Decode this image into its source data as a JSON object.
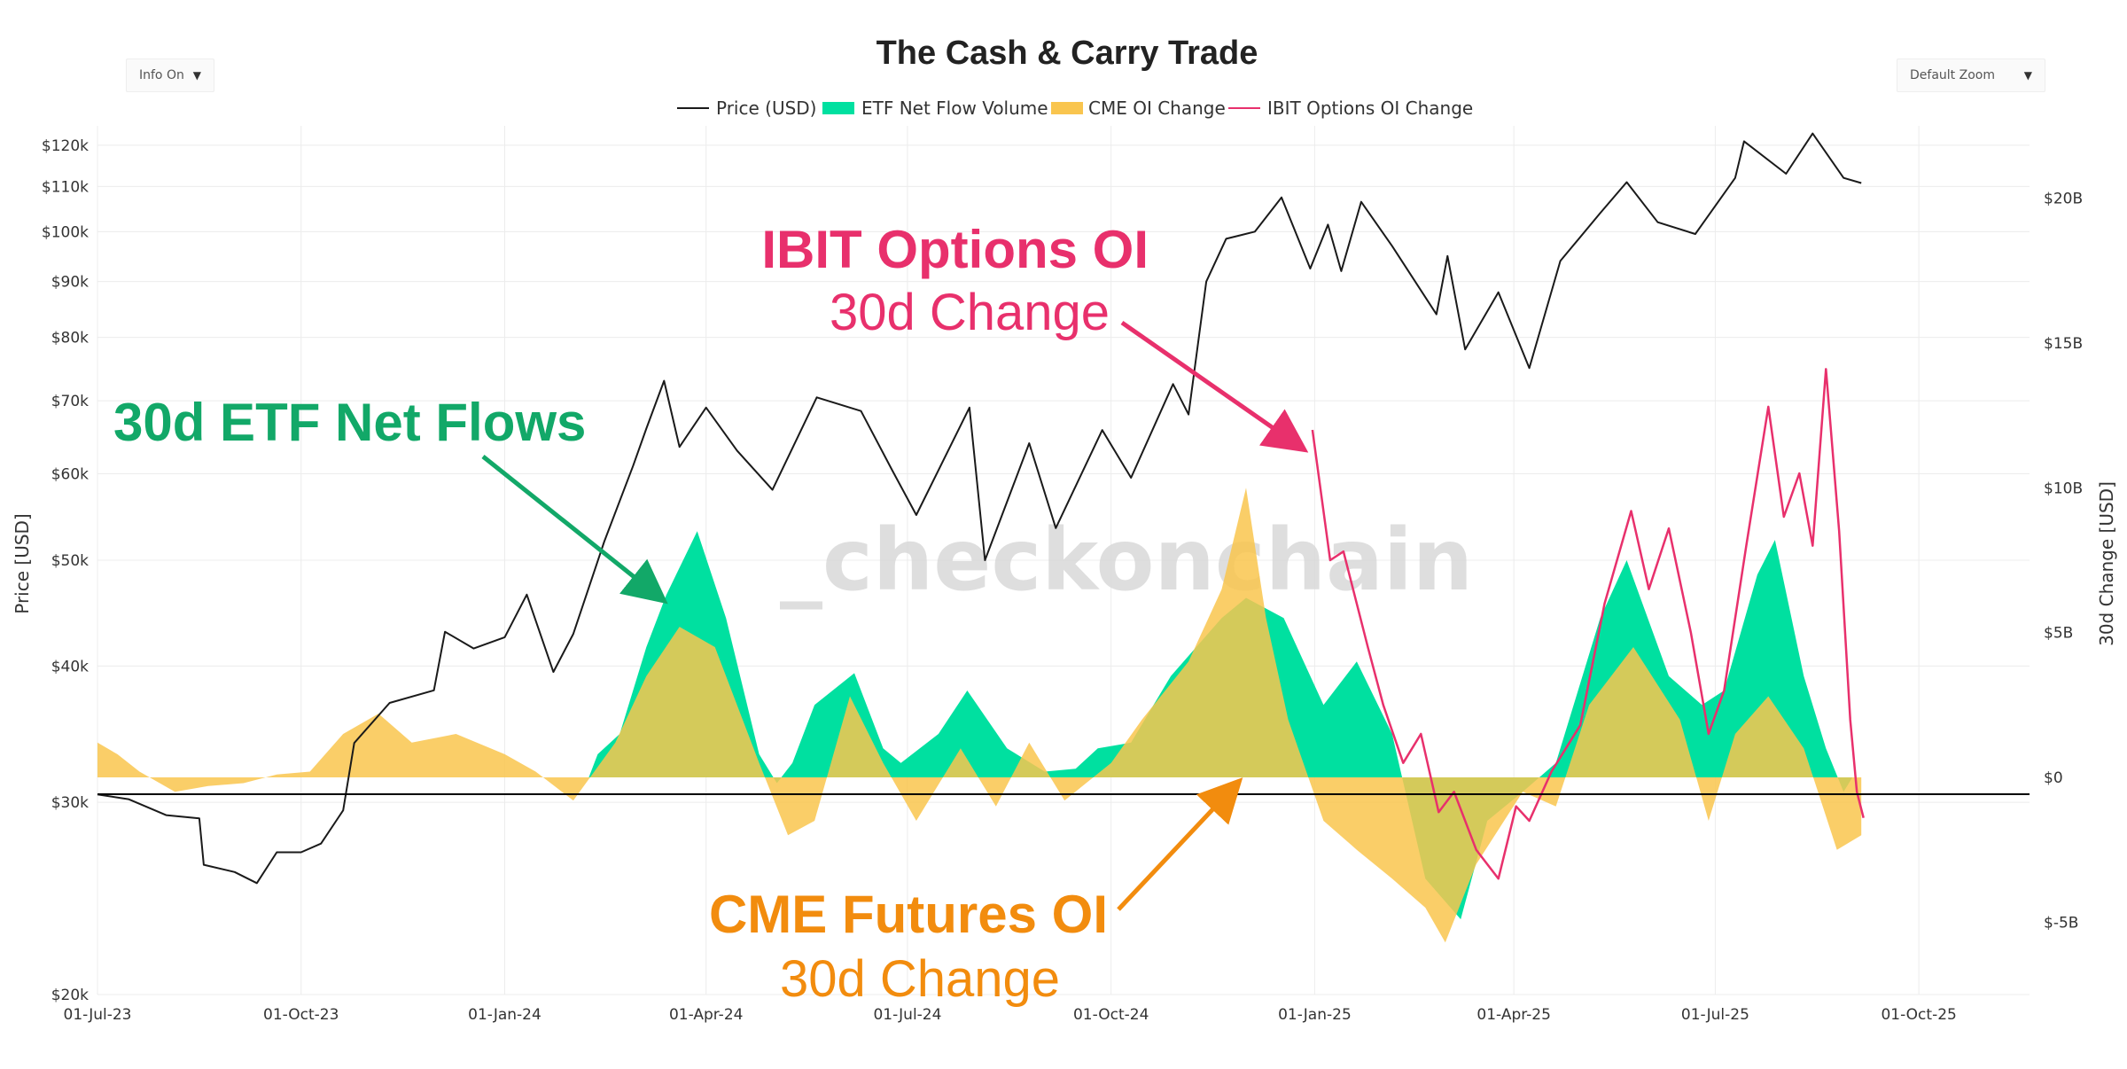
{
  "controls": {
    "info_label": "Info On",
    "zoom_label": "Default Zoom"
  },
  "colors": {
    "price": "#1a1a1a",
    "etf": "#00e0a0",
    "cme": "#f9c54e",
    "ibit": "#e8306c",
    "etf_annot": "#12a868",
    "cme_annot": "#f28c0e",
    "watermark": "#d9d9d9",
    "watermark_accent": "#fde3b6"
  },
  "watermark": "_checkonchain",
  "annotations": {
    "etf": "30d ETF Net Flows",
    "ibit_line1": "IBIT Options OI",
    "ibit_line2": "30d Change",
    "cme_line1": "CME Futures OI",
    "cme_line2": "30d Change"
  },
  "chart_data": {
    "type": "line",
    "title": "The Cash & Carry Trade",
    "ylabel": "Price [USD]",
    "y2label": "30d Change [USD]",
    "ylim": [
      20000,
      125000
    ],
    "y2lim": [
      -7500000000,
      22500000000
    ],
    "xlim": [
      "2023-07-01",
      "2025-11-20"
    ],
    "x_ticks": [
      {
        "date": "2023-07-01",
        "label": "01-Jul-23"
      },
      {
        "date": "2023-10-01",
        "label": "01-Oct-23"
      },
      {
        "date": "2024-01-01",
        "label": "01-Jan-24"
      },
      {
        "date": "2024-04-01",
        "label": "01-Apr-24"
      },
      {
        "date": "2024-07-01",
        "label": "01-Jul-24"
      },
      {
        "date": "2024-10-01",
        "label": "01-Oct-24"
      },
      {
        "date": "2025-01-01",
        "label": "01-Jan-25"
      },
      {
        "date": "2025-04-01",
        "label": "01-Apr-25"
      },
      {
        "date": "2025-07-01",
        "label": "01-Jul-25"
      },
      {
        "date": "2025-10-01",
        "label": "01-Oct-25"
      }
    ],
    "y_ticks": [
      {
        "value": 20000,
        "label": "$20k"
      },
      {
        "value": 30000,
        "label": "$30k"
      },
      {
        "value": 40000,
        "label": "$40k"
      },
      {
        "value": 50000,
        "label": "$50k"
      },
      {
        "value": 60000,
        "label": "$60k"
      },
      {
        "value": 70000,
        "label": "$70k"
      },
      {
        "value": 80000,
        "label": "$80k"
      },
      {
        "value": 90000,
        "label": "$90k"
      },
      {
        "value": 100000,
        "label": "$100k"
      },
      {
        "value": 110000,
        "label": "$110k"
      },
      {
        "value": 120000,
        "label": "$120k"
      }
    ],
    "y2_ticks": [
      {
        "value": -5000000000,
        "label": "$-5B"
      },
      {
        "value": 0,
        "label": "$0"
      },
      {
        "value": 5000000000,
        "label": "$5B"
      },
      {
        "value": 10000000000,
        "label": "$10B"
      },
      {
        "value": 15000000000,
        "label": "$15B"
      },
      {
        "value": 20000000000,
        "label": "$20B"
      }
    ],
    "series": [
      {
        "name": "Price (USD)",
        "axis": "left",
        "style": "line",
        "points": [
          [
            "2023-07-01",
            30500
          ],
          [
            "2023-07-15",
            30200
          ],
          [
            "2023-08-01",
            29200
          ],
          [
            "2023-08-16",
            29000
          ],
          [
            "2023-08-18",
            26300
          ],
          [
            "2023-09-01",
            25900
          ],
          [
            "2023-09-11",
            25300
          ],
          [
            "2023-09-20",
            27000
          ],
          [
            "2023-10-01",
            27000
          ],
          [
            "2023-10-10",
            27500
          ],
          [
            "2023-10-20",
            29500
          ],
          [
            "2023-10-25",
            34000
          ],
          [
            "2023-11-10",
            37000
          ],
          [
            "2023-11-30",
            38000
          ],
          [
            "2023-12-05",
            43000
          ],
          [
            "2023-12-18",
            41500
          ],
          [
            "2024-01-01",
            42500
          ],
          [
            "2024-01-11",
            46500
          ],
          [
            "2024-01-23",
            39500
          ],
          [
            "2024-02-01",
            42800
          ],
          [
            "2024-02-15",
            52000
          ],
          [
            "2024-02-28",
            61000
          ],
          [
            "2024-03-05",
            66000
          ],
          [
            "2024-03-13",
            73000
          ],
          [
            "2024-03-20",
            63500
          ],
          [
            "2024-04-01",
            69000
          ],
          [
            "2024-04-15",
            63000
          ],
          [
            "2024-05-01",
            58000
          ],
          [
            "2024-05-21",
            70500
          ],
          [
            "2024-06-10",
            68500
          ],
          [
            "2024-06-24",
            60500
          ],
          [
            "2024-07-05",
            55000
          ],
          [
            "2024-07-29",
            69000
          ],
          [
            "2024-08-05",
            50000
          ],
          [
            "2024-08-25",
            64000
          ],
          [
            "2024-09-06",
            53500
          ],
          [
            "2024-09-27",
            65800
          ],
          [
            "2024-10-10",
            59500
          ],
          [
            "2024-10-29",
            72500
          ],
          [
            "2024-11-05",
            68000
          ],
          [
            "2024-11-13",
            90000
          ],
          [
            "2024-11-22",
            98500
          ],
          [
            "2024-12-05",
            100000
          ],
          [
            "2024-12-17",
            107500
          ],
          [
            "2024-12-30",
            92500
          ],
          [
            "2025-01-07",
            101500
          ],
          [
            "2025-01-13",
            92000
          ],
          [
            "2025-01-22",
            106500
          ],
          [
            "2025-02-05",
            97000
          ],
          [
            "2025-02-25",
            84000
          ],
          [
            "2025-03-02",
            95000
          ],
          [
            "2025-03-10",
            78000
          ],
          [
            "2025-03-25",
            88000
          ],
          [
            "2025-04-08",
            75000
          ],
          [
            "2025-04-22",
            94000
          ],
          [
            "2025-05-10",
            104000
          ],
          [
            "2025-05-22",
            111000
          ],
          [
            "2025-06-05",
            102000
          ],
          [
            "2025-06-22",
            99500
          ],
          [
            "2025-07-10",
            112000
          ],
          [
            "2025-07-14",
            121000
          ],
          [
            "2025-08-02",
            113000
          ],
          [
            "2025-08-14",
            123000
          ],
          [
            "2025-08-28",
            112000
          ],
          [
            "2025-09-05",
            110800
          ]
        ]
      },
      {
        "name": "ETF Net Flow Volume",
        "axis": "right",
        "style": "area",
        "points": [
          [
            "2024-02-08",
            0
          ],
          [
            "2024-02-12",
            800000000.0
          ],
          [
            "2024-02-22",
            1500000000.0
          ],
          [
            "2024-03-05",
            4500000000.0
          ],
          [
            "2024-03-14",
            6300000000.0
          ],
          [
            "2024-03-28",
            8500000000.0
          ],
          [
            "2024-04-10",
            5500000000.0
          ],
          [
            "2024-04-25",
            800000000.0
          ],
          [
            "2024-05-03",
            -200000000.0
          ],
          [
            "2024-05-10",
            500000000.0
          ],
          [
            "2024-05-20",
            2500000000.0
          ],
          [
            "2024-06-07",
            3600000000.0
          ],
          [
            "2024-06-20",
            1000000000.0
          ],
          [
            "2024-06-28",
            500000000.0
          ],
          [
            "2024-07-15",
            1500000000.0
          ],
          [
            "2024-07-28",
            3000000000.0
          ],
          [
            "2024-08-15",
            1000000000.0
          ],
          [
            "2024-09-01",
            200000000.0
          ],
          [
            "2024-09-15",
            300000000.0
          ],
          [
            "2024-09-25",
            1000000000.0
          ],
          [
            "2024-10-10",
            1200000000.0
          ],
          [
            "2024-10-28",
            3500000000.0
          ],
          [
            "2024-11-20",
            5500000000.0
          ],
          [
            "2024-12-01",
            6200000000.0
          ],
          [
            "2024-12-18",
            5500000000.0
          ],
          [
            "2025-01-05",
            2500000000.0
          ],
          [
            "2025-01-20",
            4000000000.0
          ],
          [
            "2025-02-05",
            1500000000.0
          ],
          [
            "2025-02-20",
            -3500000000.0
          ],
          [
            "2025-03-08",
            -4900000000.0
          ],
          [
            "2025-03-20",
            -1500000000.0
          ],
          [
            "2025-04-05",
            -500000000.0
          ],
          [
            "2025-04-20",
            500000000.0
          ],
          [
            "2025-05-10",
            5500000000.0
          ],
          [
            "2025-05-22",
            7500000000.0
          ],
          [
            "2025-06-10",
            3500000000.0
          ],
          [
            "2025-06-25",
            2500000000.0
          ],
          [
            "2025-07-05",
            3000000000.0
          ],
          [
            "2025-07-20",
            7000000000.0
          ],
          [
            "2025-07-28",
            8200000000.0
          ],
          [
            "2025-08-10",
            3500000000.0
          ],
          [
            "2025-08-20",
            1000000000.0
          ],
          [
            "2025-08-28",
            -500000000.0
          ],
          [
            "2025-09-01",
            0
          ]
        ]
      },
      {
        "name": "CME OI Change",
        "axis": "right",
        "style": "area",
        "points": [
          [
            "2023-07-01",
            1200000000.0
          ],
          [
            "2023-07-10",
            800000000.0
          ],
          [
            "2023-07-20",
            200000000.0
          ],
          [
            "2023-08-05",
            -500000000.0
          ],
          [
            "2023-08-20",
            -300000000.0
          ],
          [
            "2023-09-05",
            -200000000.0
          ],
          [
            "2023-09-20",
            100000000.0
          ],
          [
            "2023-10-05",
            200000000.0
          ],
          [
            "2023-10-20",
            1500000000.0
          ],
          [
            "2023-11-05",
            2200000000.0
          ],
          [
            "2023-11-20",
            1200000000.0
          ],
          [
            "2023-12-10",
            1500000000.0
          ],
          [
            "2024-01-01",
            800000000.0
          ],
          [
            "2024-01-15",
            200000000.0
          ],
          [
            "2024-02-01",
            -800000000.0
          ],
          [
            "2024-02-20",
            1200000000.0
          ],
          [
            "2024-03-05",
            3500000000.0
          ],
          [
            "2024-03-20",
            5200000000.0
          ],
          [
            "2024-04-05",
            4500000000.0
          ],
          [
            "2024-04-25",
            500000000.0
          ],
          [
            "2024-05-08",
            -2000000000.0
          ],
          [
            "2024-05-20",
            -1500000000.0
          ],
          [
            "2024-06-05",
            2800000000.0
          ],
          [
            "2024-06-20",
            500000000.0
          ],
          [
            "2024-07-05",
            -1500000000.0
          ],
          [
            "2024-07-25",
            1000000000.0
          ],
          [
            "2024-08-10",
            -1000000000.0
          ],
          [
            "2024-08-25",
            1200000000.0
          ],
          [
            "2024-09-10",
            -800000000.0
          ],
          [
            "2024-10-01",
            500000000.0
          ],
          [
            "2024-10-15",
            2000000000.0
          ],
          [
            "2024-11-05",
            4000000000.0
          ],
          [
            "2024-11-20",
            6500000000.0
          ],
          [
            "2024-12-01",
            10000000000.0
          ],
          [
            "2024-12-10",
            5500000000.0
          ],
          [
            "2024-12-20",
            2000000000.0
          ],
          [
            "2025-01-05",
            -1500000000.0
          ],
          [
            "2025-01-20",
            -2500000000.0
          ],
          [
            "2025-02-05",
            -3500000000.0
          ],
          [
            "2025-02-20",
            -4500000000.0
          ],
          [
            "2025-03-01",
            -5700000000.0
          ],
          [
            "2025-03-15",
            -3000000000.0
          ],
          [
            "2025-04-05",
            -500000000.0
          ],
          [
            "2025-04-20",
            -1000000000.0
          ],
          [
            "2025-05-05",
            2500000000.0
          ],
          [
            "2025-05-25",
            4500000000.0
          ],
          [
            "2025-06-15",
            2000000000.0
          ],
          [
            "2025-06-28",
            -1500000000.0
          ],
          [
            "2025-07-10",
            1500000000.0
          ],
          [
            "2025-07-25",
            2800000000.0
          ],
          [
            "2025-08-10",
            1000000000.0
          ],
          [
            "2025-08-25",
            -2500000000.0
          ],
          [
            "2025-09-05",
            -2000000000.0
          ]
        ]
      },
      {
        "name": "IBIT Options OI Change",
        "axis": "right",
        "style": "line",
        "points": [
          [
            "2024-12-31",
            12000000000.0
          ],
          [
            "2025-01-08",
            7500000000.0
          ],
          [
            "2025-01-14",
            7800000000.0
          ],
          [
            "2025-01-25",
            4500000000.0
          ],
          [
            "2025-02-01",
            2500000000.0
          ],
          [
            "2025-02-10",
            500000000.0
          ],
          [
            "2025-02-18",
            1500000000.0
          ],
          [
            "2025-02-26",
            -1200000000.0
          ],
          [
            "2025-03-05",
            -500000000.0
          ],
          [
            "2025-03-15",
            -2500000000.0
          ],
          [
            "2025-03-25",
            -3500000000.0
          ],
          [
            "2025-04-02",
            -1000000000.0
          ],
          [
            "2025-04-08",
            -1500000000.0
          ],
          [
            "2025-04-18",
            200000000.0
          ],
          [
            "2025-05-01",
            1800000000.0
          ],
          [
            "2025-05-12",
            6000000000.0
          ],
          [
            "2025-05-24",
            9200000000.0
          ],
          [
            "2025-06-01",
            6500000000.0
          ],
          [
            "2025-06-10",
            8600000000.0
          ],
          [
            "2025-06-20",
            5000000000.0
          ],
          [
            "2025-06-28",
            1500000000.0
          ],
          [
            "2025-07-05",
            3000000000.0
          ],
          [
            "2025-07-15",
            8000000000.0
          ],
          [
            "2025-07-25",
            12800000000.0
          ],
          [
            "2025-08-01",
            9000000000.0
          ],
          [
            "2025-08-08",
            10500000000.0
          ],
          [
            "2025-08-14",
            8000000000.0
          ],
          [
            "2025-08-20",
            14100000000.0
          ],
          [
            "2025-08-26",
            8500000000.0
          ],
          [
            "2025-08-31",
            2000000000.0
          ],
          [
            "2025-09-03",
            -500000000.0
          ],
          [
            "2025-09-06",
            -1400000000.0
          ]
        ]
      }
    ]
  }
}
